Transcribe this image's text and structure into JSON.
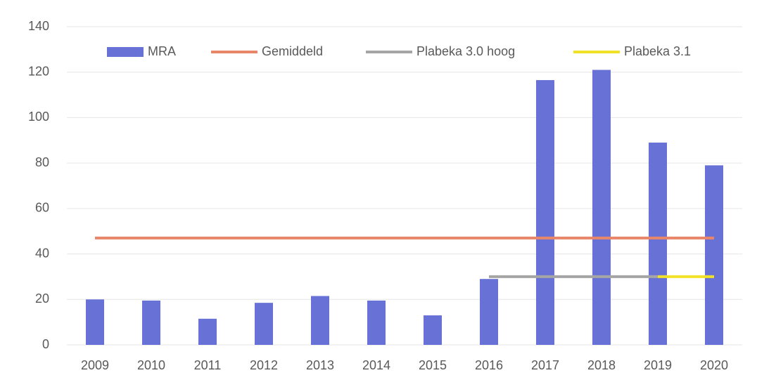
{
  "chart_data": {
    "type": "bar",
    "categories": [
      "2009",
      "2010",
      "2011",
      "2012",
      "2013",
      "2014",
      "2015",
      "2016",
      "2017",
      "2018",
      "2019",
      "2020"
    ],
    "series": [
      {
        "name": "MRA",
        "type": "bar",
        "color": "#6872d6",
        "values": [
          20,
          19.5,
          11.5,
          18.5,
          21.5,
          19.5,
          13,
          29,
          116.5,
          121,
          89,
          79
        ]
      },
      {
        "name": "Gemiddeld",
        "type": "line",
        "color": "#e8866a",
        "values": [
          47,
          47,
          47,
          47,
          47,
          47,
          47,
          47,
          47,
          47,
          47,
          47
        ]
      },
      {
        "name": "Plabeka 3.0 hoog",
        "type": "line",
        "color": "#a5a5a5",
        "values": [
          null,
          null,
          null,
          null,
          null,
          null,
          null,
          30,
          30,
          30,
          30,
          null
        ]
      },
      {
        "name": "Plabeka 3.1",
        "type": "line",
        "color": "#f2e227",
        "values": [
          null,
          null,
          null,
          null,
          null,
          null,
          null,
          null,
          null,
          null,
          30,
          30
        ]
      }
    ],
    "ylim": [
      0,
      140
    ],
    "yticks": [
      0,
      20,
      40,
      60,
      80,
      100,
      120,
      140
    ],
    "grid": true
  }
}
